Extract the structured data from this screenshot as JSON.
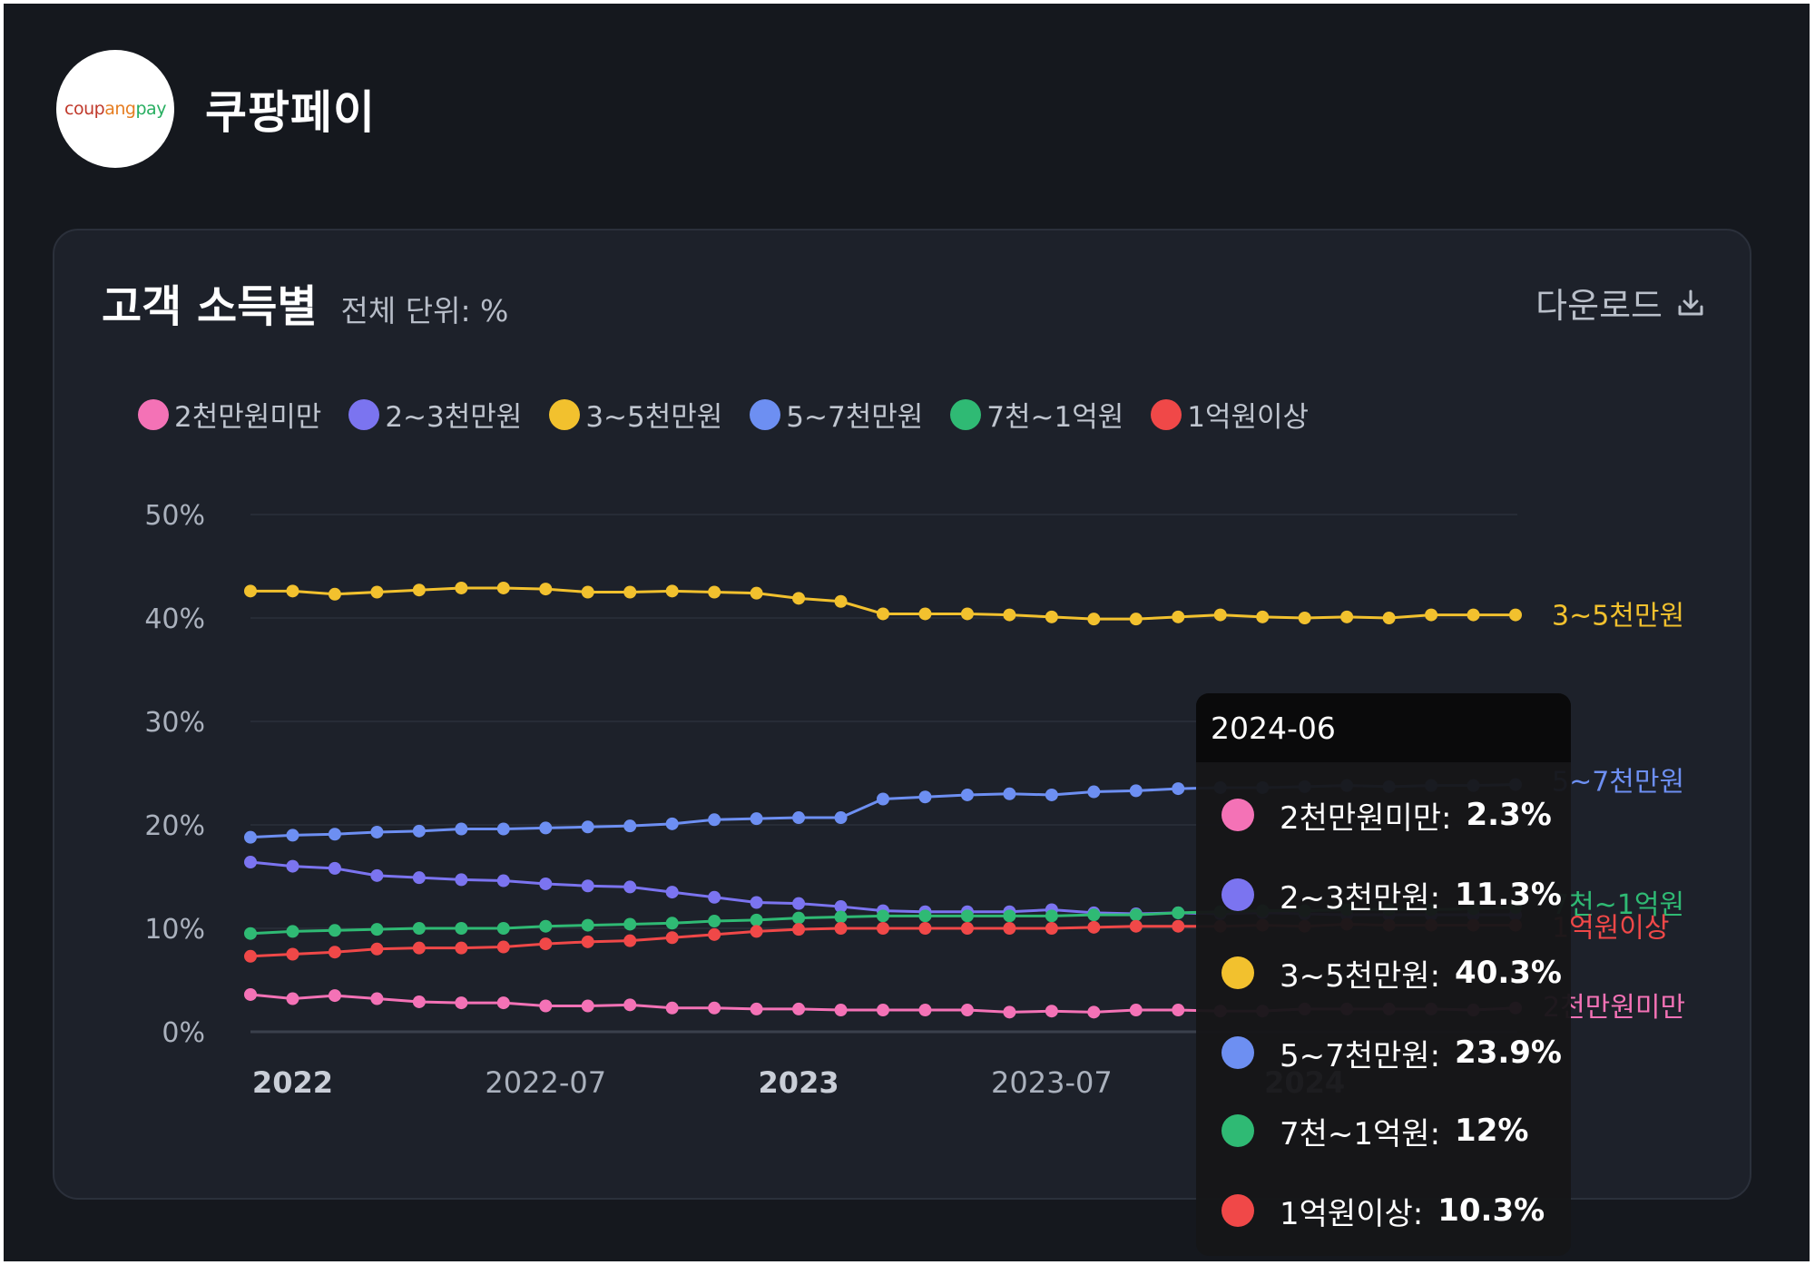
{
  "header": {
    "brand_name": "쿠팡페이",
    "logo_text": [
      "coup",
      "ang",
      " pay"
    ],
    "logo_colors": [
      "#c0392b",
      "#e67e22",
      "#27ae60"
    ]
  },
  "card": {
    "title": "고객 소득별",
    "subtitle": "전체 단위: %",
    "download_label": "다운로드",
    "download_icon": "download-icon"
  },
  "chart_data": {
    "type": "line",
    "title": "고객 소득별",
    "unit": "%",
    "ylim": [
      0,
      50
    ],
    "yticks": [
      "0%",
      "10%",
      "20%",
      "30%",
      "40%",
      "50%"
    ],
    "grid": true,
    "legend": "top-left",
    "xtick_labels": [
      {
        "index": 1,
        "label": "2022",
        "bold": true
      },
      {
        "index": 7,
        "label": "2022-07",
        "bold": false
      },
      {
        "index": 13,
        "label": "2023",
        "bold": true
      },
      {
        "index": 19,
        "label": "2023-07",
        "bold": false
      },
      {
        "index": 25,
        "label": "2024",
        "bold": true
      }
    ],
    "x": [
      "2021-12",
      "2022-01",
      "2022-02",
      "2022-03",
      "2022-04",
      "2022-05",
      "2022-06",
      "2022-07",
      "2022-08",
      "2022-09",
      "2022-10",
      "2022-11",
      "2022-12",
      "2023-01",
      "2023-02",
      "2023-03",
      "2023-04",
      "2023-05",
      "2023-06",
      "2023-07",
      "2023-08",
      "2023-09",
      "2023-10",
      "2023-11",
      "2023-12",
      "2024-01",
      "2024-02",
      "2024-03",
      "2024-04",
      "2024-05",
      "2024-06"
    ],
    "series": [
      {
        "name": "2천만원미만",
        "color": "#f472b6",
        "values": [
          3.6,
          3.2,
          3.5,
          3.2,
          2.9,
          2.8,
          2.8,
          2.5,
          2.5,
          2.6,
          2.3,
          2.3,
          2.2,
          2.2,
          2.1,
          2.1,
          2.1,
          2.1,
          1.9,
          2.0,
          1.9,
          2.1,
          2.1,
          2.0,
          2.0,
          2.2,
          2.2,
          2.2,
          2.2,
          2.1,
          2.3
        ]
      },
      {
        "name": "2~3천만원",
        "color": "#7b74f0",
        "values": [
          16.4,
          16.0,
          15.8,
          15.1,
          14.9,
          14.7,
          14.6,
          14.3,
          14.1,
          14.0,
          13.5,
          13.0,
          12.5,
          12.4,
          12.1,
          11.7,
          11.6,
          11.6,
          11.6,
          11.8,
          11.5,
          11.4,
          11.5,
          11.4,
          11.5,
          11.4,
          11.3,
          11.3,
          11.3,
          11.3,
          11.3
        ]
      },
      {
        "name": "3~5천만원",
        "color": "#f2c12e",
        "values": [
          42.6,
          42.6,
          42.3,
          42.5,
          42.7,
          42.9,
          42.9,
          42.8,
          42.5,
          42.5,
          42.6,
          42.5,
          42.4,
          41.9,
          41.6,
          40.4,
          40.4,
          40.4,
          40.3,
          40.1,
          39.9,
          39.9,
          40.1,
          40.3,
          40.1,
          40.0,
          40.1,
          40.0,
          40.3,
          40.3,
          40.3
        ]
      },
      {
        "name": "5~7천만원",
        "color": "#6d8ff2",
        "values": [
          18.8,
          19.0,
          19.1,
          19.3,
          19.4,
          19.6,
          19.6,
          19.7,
          19.8,
          19.9,
          20.1,
          20.5,
          20.6,
          20.7,
          20.7,
          22.5,
          22.7,
          22.9,
          23.0,
          22.9,
          23.2,
          23.3,
          23.5,
          23.6,
          23.6,
          23.7,
          23.8,
          23.7,
          23.8,
          23.8,
          23.9
        ]
      },
      {
        "name": "7천~1억원",
        "color": "#2fba74",
        "values": [
          9.5,
          9.7,
          9.8,
          9.9,
          10.0,
          10.0,
          10.0,
          10.2,
          10.3,
          10.4,
          10.5,
          10.7,
          10.8,
          11.0,
          11.1,
          11.2,
          11.2,
          11.2,
          11.2,
          11.2,
          11.3,
          11.3,
          11.5,
          11.6,
          11.7,
          11.7,
          11.8,
          11.8,
          11.8,
          11.9,
          12.0
        ]
      },
      {
        "name": "1억원이상",
        "color": "#f04848",
        "values": [
          7.3,
          7.5,
          7.7,
          8.0,
          8.1,
          8.1,
          8.2,
          8.5,
          8.7,
          8.8,
          9.1,
          9.4,
          9.7,
          9.9,
          10.0,
          10.0,
          10.0,
          10.0,
          10.0,
          10.0,
          10.1,
          10.2,
          10.2,
          10.2,
          10.3,
          10.2,
          10.4,
          10.3,
          10.3,
          10.3,
          10.3
        ]
      }
    ],
    "end_labels": [
      {
        "series": "3~5천만원",
        "text": "3~5천만원"
      },
      {
        "series": "5~7천만원",
        "text": "5~7천만원"
      },
      {
        "series": "7천~1억원",
        "text": "7천~1억원"
      },
      {
        "series": "1억원이상",
        "text": "1억원이상"
      },
      {
        "series": "2천만원미만",
        "text": "2천만원미만"
      }
    ],
    "tooltip": {
      "date": "2024-06",
      "rows": [
        {
          "label": "2천만원미만:",
          "value": "2.3%",
          "color": "#f472b6"
        },
        {
          "label": "2~3천만원:",
          "value": "11.3%",
          "color": "#7b74f0"
        },
        {
          "label": "3~5천만원:",
          "value": "40.3%",
          "color": "#f2c12e"
        },
        {
          "label": "5~7천만원:",
          "value": "23.9%",
          "color": "#6d8ff2"
        },
        {
          "label": "7천~1억원:",
          "value": "12%",
          "color": "#2fba74"
        },
        {
          "label": "1억원이상:",
          "value": "10.3%",
          "color": "#f04848"
        }
      ]
    }
  }
}
